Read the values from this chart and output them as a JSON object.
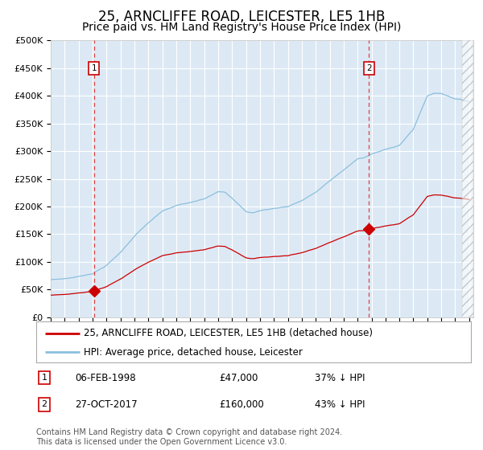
{
  "title": "25, ARNCLIFFE ROAD, LEICESTER, LE5 1HB",
  "subtitle": "Price paid vs. HM Land Registry's House Price Index (HPI)",
  "legend_line1": "25, ARNCLIFFE ROAD, LEICESTER, LE5 1HB (detached house)",
  "legend_line2": "HPI: Average price, detached house, Leicester",
  "footer": "Contains HM Land Registry data © Crown copyright and database right 2024.\nThis data is licensed under the Open Government Licence v3.0.",
  "sale1_label": "1",
  "sale1_date": "06-FEB-1998",
  "sale1_price": "£47,000",
  "sale1_hpi": "37% ↓ HPI",
  "sale1_year": 1998.1,
  "sale1_value": 47000,
  "sale2_label": "2",
  "sale2_date": "27-OCT-2017",
  "sale2_price": "£160,000",
  "sale2_hpi": "43% ↓ HPI",
  "sale2_year": 2017.82,
  "sale2_value": 160000,
  "hpi_color": "#8bbfdd",
  "price_color": "#cc0000",
  "bg_color": "#dce9f5",
  "grid_color": "#ffffff",
  "sale_line_color": "#dd4444",
  "ylim": [
    0,
    500000
  ],
  "yticks": [
    0,
    50000,
    100000,
    150000,
    200000,
    250000,
    300000,
    350000,
    400000,
    450000,
    500000
  ],
  "title_fontsize": 12,
  "subtitle_fontsize": 10,
  "tick_fontsize": 8,
  "legend_fontsize": 9,
  "footer_fontsize": 7
}
